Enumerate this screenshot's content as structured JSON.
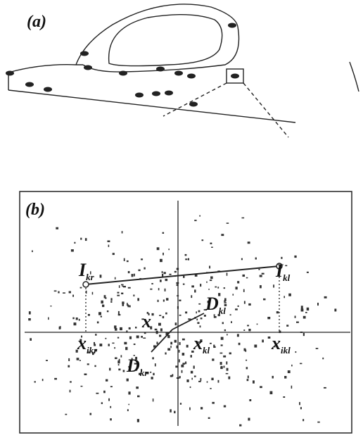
{
  "panels": [
    {
      "label": "(a)"
    },
    {
      "label": "(b)",
      "annotations": [
        {
          "main": "I",
          "sub": "kr"
        },
        {
          "main": "I",
          "sub": "kl"
        },
        {
          "main": "D",
          "sub": "kl"
        },
        {
          "main": "D",
          "sub": "kr"
        },
        {
          "main": "x",
          "sub": "ikr"
        },
        {
          "main": "x",
          "sub": "kl"
        },
        {
          "main": "x",
          "sub": "ikl"
        },
        {
          "main": "x"
        }
      ]
    }
  ]
}
